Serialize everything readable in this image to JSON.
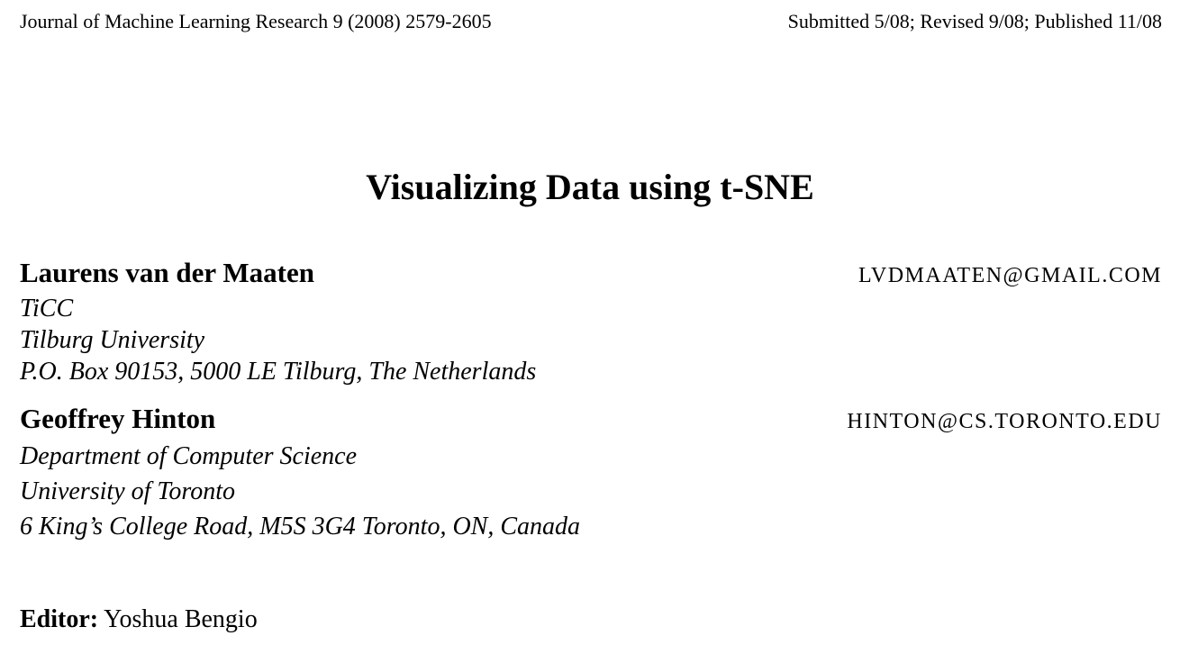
{
  "running_head": {
    "journal": "Journal of Machine Learning Research 9 (2008) 2579-2605",
    "dates": "Submitted 5/08; Revised 9/08; Published 11/08"
  },
  "title": "Visualizing Data using t-SNE",
  "authors": [
    {
      "name": "Laurens van der Maaten",
      "email": "LVDMAATEN@GMAIL.COM",
      "affiliation": [
        "TiCC",
        "Tilburg University",
        "P.O. Box 90153, 5000 LE Tilburg, The Netherlands"
      ]
    },
    {
      "name": "Geoffrey Hinton",
      "email": "HINTON@CS.TORONTO.EDU",
      "affiliation": [
        "Department of Computer Science",
        "University of Toronto",
        "6 King’s College Road, M5S 3G4 Toronto, ON, Canada"
      ]
    }
  ],
  "editor": {
    "label": "Editor:",
    "name": "Yoshua Bengio"
  }
}
